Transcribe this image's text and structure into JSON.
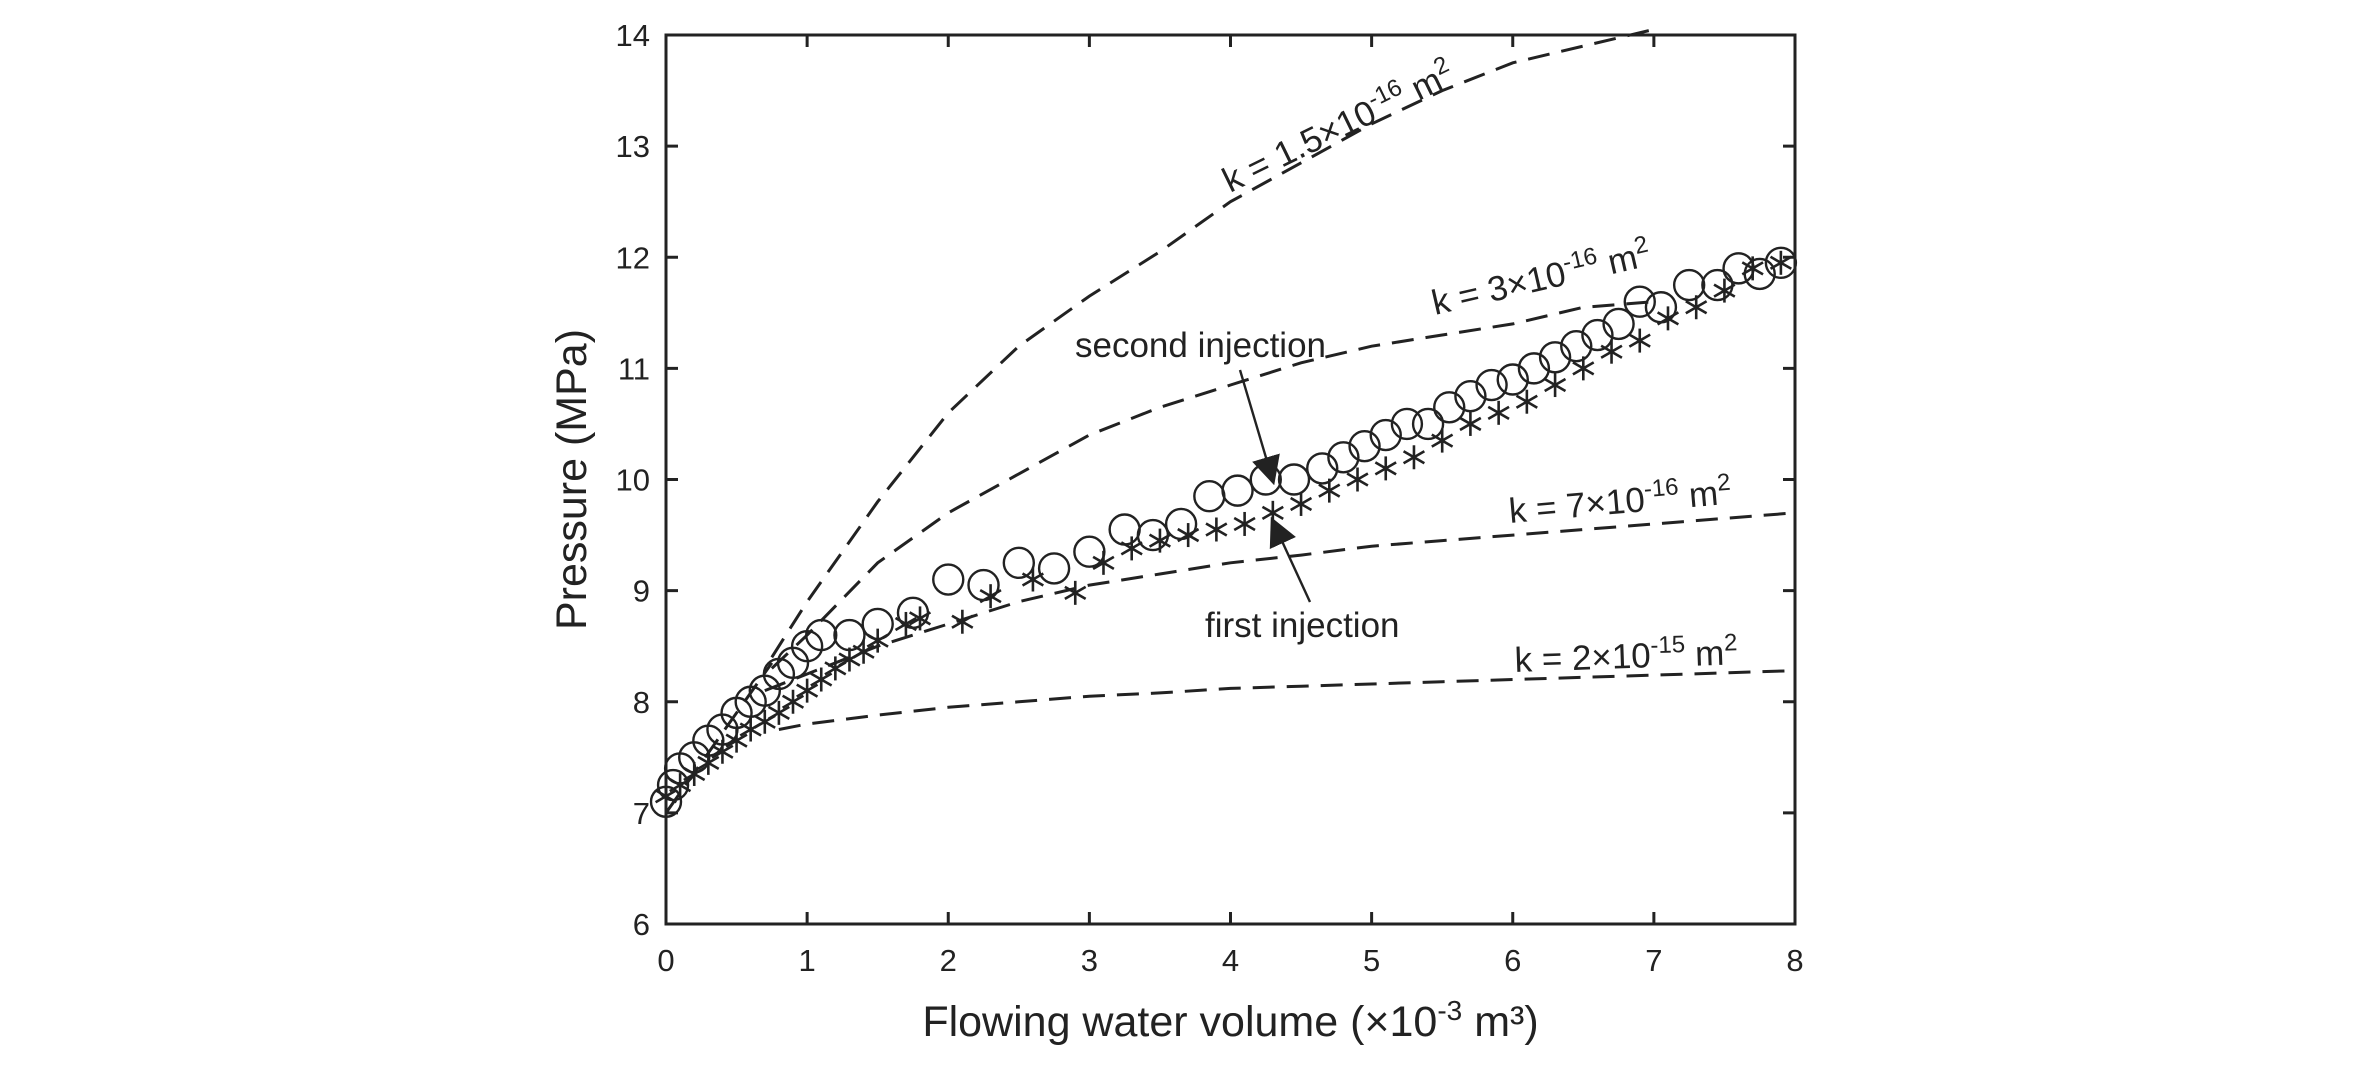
{
  "chart_data": {
    "type": "scatter",
    "xlabel": "Flowing water volume (×10",
    "xlabel_exp": "-3",
    "xlabel_unit": " m³)",
    "ylabel": "Pressure (MPa)",
    "xlim": [
      0,
      8
    ],
    "ylim": [
      6,
      14
    ],
    "xticks": [
      "0",
      "1",
      "2",
      "3",
      "4",
      "5",
      "6",
      "7",
      "8"
    ],
    "yticks": [
      "6",
      "7",
      "8",
      "9",
      "10",
      "11",
      "12",
      "13",
      "14"
    ],
    "grid": false,
    "series": [
      {
        "name": "first injection",
        "marker": "asterisk",
        "x": [
          0.0,
          0.1,
          0.2,
          0.3,
          0.4,
          0.5,
          0.6,
          0.7,
          0.8,
          0.9,
          1.0,
          1.1,
          1.2,
          1.3,
          1.4,
          1.5,
          1.7,
          1.8,
          2.1,
          2.3,
          2.6,
          2.9,
          3.1,
          3.3,
          3.5,
          3.7,
          3.9,
          4.1,
          4.3,
          4.5,
          4.7,
          4.9,
          5.1,
          5.3,
          5.5,
          5.7,
          5.9,
          6.1,
          6.3,
          6.5,
          6.7,
          6.9,
          7.1,
          7.3,
          7.5,
          7.7,
          7.9
        ],
        "y": [
          7.15,
          7.25,
          7.35,
          7.45,
          7.55,
          7.65,
          7.75,
          7.82,
          7.9,
          8.0,
          8.1,
          8.2,
          8.3,
          8.38,
          8.45,
          8.55,
          8.7,
          8.75,
          8.72,
          8.95,
          9.1,
          8.98,
          9.25,
          9.38,
          9.45,
          9.5,
          9.55,
          9.6,
          9.7,
          9.78,
          9.9,
          10.0,
          10.1,
          10.2,
          10.35,
          10.5,
          10.6,
          10.7,
          10.85,
          11.0,
          11.15,
          11.25,
          11.45,
          11.55,
          11.7,
          11.9,
          11.95
        ]
      },
      {
        "name": "second injection",
        "marker": "circle",
        "x": [
          0.0,
          0.05,
          0.1,
          0.2,
          0.3,
          0.4,
          0.5,
          0.6,
          0.7,
          0.8,
          0.9,
          1.0,
          1.1,
          1.3,
          1.5,
          1.75,
          2.0,
          2.25,
          2.5,
          2.75,
          3.0,
          3.25,
          3.45,
          3.65,
          3.85,
          4.05,
          4.25,
          4.45,
          4.65,
          4.8,
          4.95,
          5.1,
          5.25,
          5.4,
          5.55,
          5.7,
          5.85,
          6.0,
          6.15,
          6.3,
          6.45,
          6.6,
          6.75,
          6.9,
          7.05,
          7.25,
          7.45,
          7.6,
          7.75,
          7.9
        ],
        "y": [
          7.1,
          7.25,
          7.4,
          7.5,
          7.65,
          7.75,
          7.9,
          8.0,
          8.1,
          8.25,
          8.35,
          8.5,
          8.6,
          8.6,
          8.7,
          8.8,
          9.1,
          9.05,
          9.25,
          9.2,
          9.35,
          9.55,
          9.5,
          9.6,
          9.85,
          9.9,
          10.0,
          10.0,
          10.1,
          10.2,
          10.3,
          10.4,
          10.5,
          10.5,
          10.65,
          10.75,
          10.85,
          10.9,
          11.0,
          11.1,
          11.2,
          11.3,
          11.4,
          11.6,
          11.55,
          11.75,
          11.75,
          11.9,
          11.85,
          11.95
        ]
      }
    ],
    "model_curves": [
      {
        "label_base": "k = 1.5×10",
        "label_exp": "-16",
        "label_unit": " m",
        "label_unit_exp": "2",
        "style": "dashed",
        "x": [
          0.75,
          1.0,
          1.5,
          2.0,
          2.5,
          3.0,
          3.5,
          4.0,
          4.5,
          5.0,
          5.5,
          6.0,
          6.5,
          7.0
        ],
        "y": [
          8.4,
          8.9,
          9.8,
          10.6,
          11.2,
          11.65,
          12.05,
          12.5,
          12.85,
          13.2,
          13.5,
          13.75,
          13.9,
          14.05
        ]
      },
      {
        "label_base": "k = 3×10",
        "label_exp": "-16",
        "label_unit": " m",
        "label_unit_exp": "2",
        "style": "dashed",
        "x": [
          0.75,
          1.0,
          1.5,
          2.0,
          2.5,
          3.0,
          3.5,
          4.0,
          4.5,
          5.0,
          5.5,
          6.0,
          6.5,
          7.0
        ],
        "y": [
          8.3,
          8.6,
          9.25,
          9.7,
          10.05,
          10.4,
          10.65,
          10.85,
          11.05,
          11.2,
          11.3,
          11.4,
          11.55,
          11.6
        ]
      },
      {
        "label_base": "k = 7×10",
        "label_exp": "-16",
        "label_unit": " m",
        "label_unit_exp": "2",
        "style": "dashed",
        "x": [
          0.7,
          1.0,
          1.5,
          2.0,
          2.5,
          3.0,
          3.5,
          4.0,
          4.5,
          5.0,
          5.5,
          6.0,
          6.5,
          7.0,
          7.5,
          8.0
        ],
        "y": [
          8.1,
          8.25,
          8.5,
          8.7,
          8.9,
          9.05,
          9.15,
          9.25,
          9.32,
          9.4,
          9.45,
          9.5,
          9.55,
          9.6,
          9.65,
          9.7
        ]
      },
      {
        "label_base": "k = 2×10",
        "label_exp": "-15",
        "label_unit": " m",
        "label_unit_exp": "2",
        "style": "dashed",
        "x": [
          0.8,
          1.0,
          1.5,
          2.0,
          2.5,
          3.0,
          3.5,
          4.0,
          4.5,
          5.0,
          5.5,
          6.0,
          6.5,
          7.0,
          7.5,
          8.0
        ],
        "y": [
          7.75,
          7.8,
          7.88,
          7.95,
          8.0,
          8.05,
          8.08,
          8.12,
          8.14,
          8.16,
          8.18,
          8.2,
          8.22,
          8.24,
          8.26,
          8.28
        ]
      }
    ],
    "shared_initial_segment": {
      "x": [
        0.0,
        0.75
      ],
      "y": [
        7.0,
        8.35
      ]
    },
    "annotations": [
      {
        "text": "second injection",
        "arrow_to": [
          4.3,
          9.9
        ]
      },
      {
        "text": "first injection",
        "arrow_to": [
          4.3,
          9.75
        ]
      }
    ]
  }
}
